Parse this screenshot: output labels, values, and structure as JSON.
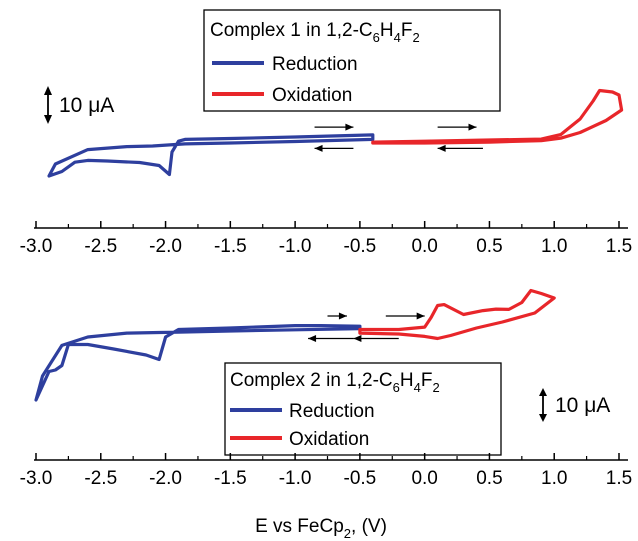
{
  "chart_data": [
    {
      "type": "line",
      "name": "panel-1",
      "legend": {
        "title_main": "Complex 1 in 1,2-C",
        "title_sub1": "6",
        "title_mid": "H",
        "title_sub2": "4",
        "title_end": "F",
        "title_sub3": "2",
        "placement": "top-center"
      },
      "scale_bar": {
        "label": "10 μA",
        "value": 10,
        "unit": "μA"
      },
      "series": [
        {
          "name": "Reduction",
          "color": "#2e3f9e",
          "points": [
            [
              -0.4,
              2.7
            ],
            [
              -1.0,
              2.0
            ],
            [
              -1.5,
              1.5
            ],
            [
              -1.85,
              1.2
            ],
            [
              -1.9,
              0.6
            ],
            [
              -1.95,
              -3.0
            ],
            [
              -1.97,
              -10.5
            ],
            [
              -2.05,
              -7.5
            ],
            [
              -2.2,
              -6.5
            ],
            [
              -2.45,
              -6.0
            ],
            [
              -2.6,
              -5.8
            ],
            [
              -2.7,
              -6.4
            ],
            [
              -2.8,
              -9.5
            ],
            [
              -2.9,
              -11.0
            ],
            [
              -2.85,
              -7.0
            ],
            [
              -2.6,
              -2.2
            ],
            [
              -2.3,
              -1.2
            ],
            [
              -2.1,
              -1.0
            ],
            [
              -1.85,
              -0.3
            ],
            [
              -1.5,
              0.0
            ],
            [
              -1.0,
              0.5
            ],
            [
              -0.4,
              1.2
            ]
          ]
        },
        {
          "name": "Oxidation",
          "color": "#e8262a",
          "points": [
            [
              -0.4,
              0.3
            ],
            [
              0.0,
              0.6
            ],
            [
              0.5,
              1.0
            ],
            [
              0.9,
              1.3
            ],
            [
              1.05,
              2.8
            ],
            [
              1.2,
              8.0
            ],
            [
              1.3,
              14.0
            ],
            [
              1.35,
              17.5
            ],
            [
              1.45,
              17.0
            ],
            [
              1.5,
              16.0
            ],
            [
              1.52,
              11.0
            ],
            [
              1.4,
              7.5
            ],
            [
              1.2,
              3.5
            ],
            [
              1.05,
              1.6
            ],
            [
              0.9,
              0.8
            ],
            [
              0.5,
              0.3
            ],
            [
              0.0,
              0.0
            ],
            [
              -0.4,
              0.0
            ]
          ]
        }
      ],
      "arrows": [
        {
          "x_from": -0.85,
          "x_to": -0.55,
          "y": 5.3
        },
        {
          "x_from": -0.55,
          "x_to": -0.85,
          "y": -1.8
        },
        {
          "x_from": 0.1,
          "x_to": 0.4,
          "y": 5.3
        },
        {
          "x_from": 0.45,
          "x_to": 0.1,
          "y": -1.8
        }
      ]
    },
    {
      "type": "line",
      "name": "panel-2",
      "legend": {
        "title_main": "Complex 2 in 1,2-C",
        "title_sub1": "6",
        "title_mid": "H",
        "title_sub2": "4",
        "title_end": "F",
        "title_sub3": "2",
        "placement": "bottom-center"
      },
      "scale_bar": {
        "label": "10 μA",
        "value": 10,
        "unit": "μA"
      },
      "series": [
        {
          "name": "Reduction",
          "color": "#2e3f9e",
          "points": [
            [
              -0.5,
              2.6
            ],
            [
              -0.8,
              2.8
            ],
            [
              -1.0,
              2.8
            ],
            [
              -1.5,
              2.0
            ],
            [
              -1.9,
              1.5
            ],
            [
              -2.0,
              -1.0
            ],
            [
              -2.05,
              -8.5
            ],
            [
              -2.15,
              -7.0
            ],
            [
              -2.4,
              -5.0
            ],
            [
              -2.6,
              -3.5
            ],
            [
              -2.75,
              -3.5
            ],
            [
              -2.8,
              -10.5
            ],
            [
              -2.85,
              -12.0
            ],
            [
              -2.9,
              -12.5
            ],
            [
              -3.0,
              -22.0
            ],
            [
              -2.95,
              -14.0
            ],
            [
              -2.8,
              -3.8
            ],
            [
              -2.6,
              -1.0
            ],
            [
              -2.3,
              0.3
            ],
            [
              -2.05,
              0.5
            ],
            [
              -1.9,
              0.6
            ],
            [
              -1.5,
              1.0
            ],
            [
              -1.0,
              1.4
            ],
            [
              -0.5,
              1.8
            ]
          ]
        },
        {
          "name": "Oxidation",
          "color": "#e8262a",
          "points": [
            [
              -0.5,
              1.5
            ],
            [
              -0.2,
              1.5
            ],
            [
              0.0,
              2.3
            ],
            [
              0.05,
              5.5
            ],
            [
              0.1,
              9.5
            ],
            [
              0.15,
              9.8
            ],
            [
              0.3,
              6.5
            ],
            [
              0.45,
              7.8
            ],
            [
              0.55,
              8.3
            ],
            [
              0.65,
              8.2
            ],
            [
              0.75,
              10.5
            ],
            [
              0.82,
              14.5
            ],
            [
              0.9,
              13.5
            ],
            [
              1.0,
              12.0
            ],
            [
              0.85,
              7.0
            ],
            [
              0.6,
              4.0
            ],
            [
              0.4,
              2.0
            ],
            [
              0.2,
              -0.5
            ],
            [
              0.1,
              -1.5
            ],
            [
              0.0,
              -0.8
            ],
            [
              -0.2,
              0.0
            ],
            [
              -0.5,
              0.3
            ]
          ]
        }
      ],
      "arrows": [
        {
          "x_from": -0.75,
          "x_to": -0.6,
          "y": 6.0
        },
        {
          "x_from": -0.3,
          "x_to": 0.0,
          "y": 6.0
        },
        {
          "x_from": -0.55,
          "x_to": -0.9,
          "y": -1.5
        },
        {
          "x_from": -0.2,
          "x_to": -0.55,
          "y": -1.5
        }
      ]
    }
  ],
  "axes": {
    "xlabel_main": "E vs FeCp",
    "xlabel_sub": "2",
    "xlabel_end": ", (V)",
    "x_ticks": [
      "-3.0",
      "-2.5",
      "-2.0",
      "-1.5",
      "-1.0",
      "-0.5",
      "0.0",
      "0.5",
      "1.0",
      "1.5"
    ],
    "x_tick_values": [
      -3.0,
      -2.5,
      -2.0,
      -1.5,
      -1.0,
      -0.5,
      0.0,
      0.5,
      1.0,
      1.5
    ],
    "xlim": [
      -3.0,
      1.5
    ],
    "grid": false
  }
}
